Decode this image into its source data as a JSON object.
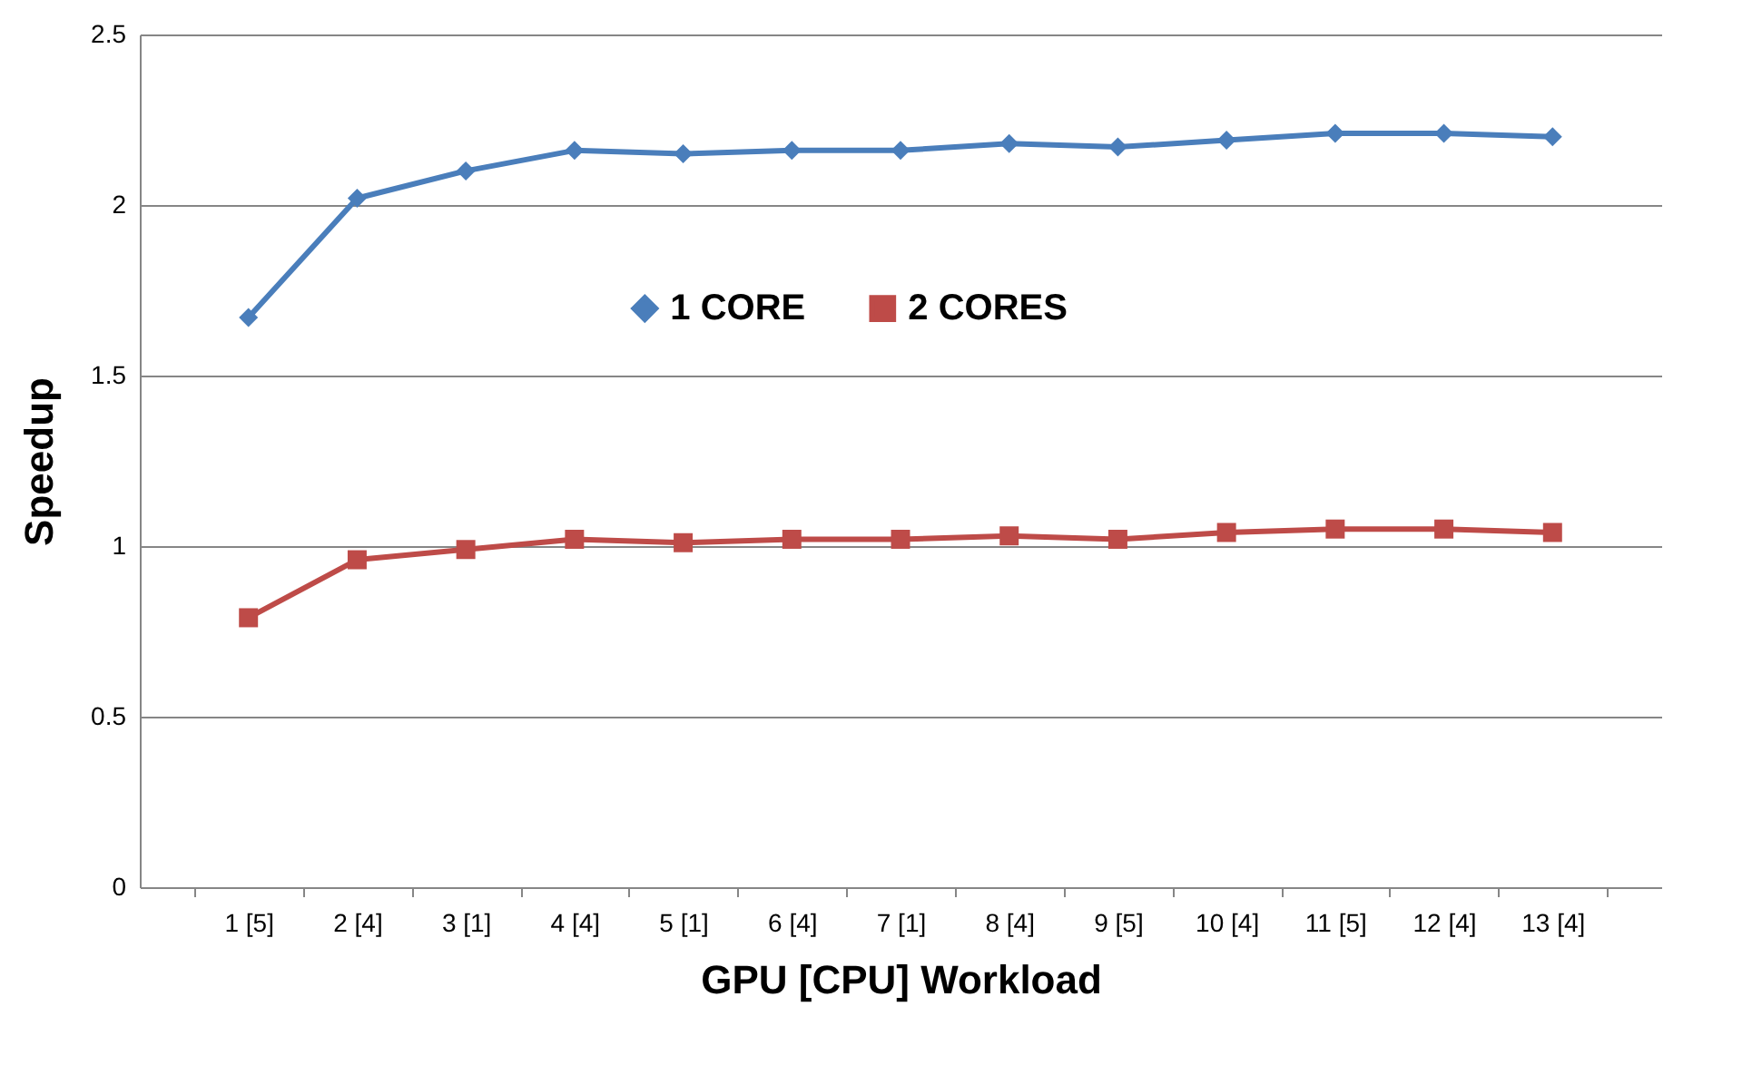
{
  "chart_data": {
    "type": "line",
    "xlabel": "GPU [CPU] Workload",
    "ylabel": "Speedup",
    "categories": [
      "1 [5]",
      "2 [4]",
      "3 [1]",
      "4 [4]",
      "5 [1]",
      "6 [4]",
      "7 [1]",
      "8 [4]",
      "9 [5]",
      "10 [4]",
      "11 [5]",
      "12 [4]",
      "13 [4]"
    ],
    "series": [
      {
        "name": "1 CORE",
        "color": "#4a7ebb",
        "marker": "diamond",
        "values": [
          1.67,
          2.02,
          2.1,
          2.16,
          2.15,
          2.16,
          2.16,
          2.18,
          2.17,
          2.19,
          2.21,
          2.21,
          2.2
        ]
      },
      {
        "name": "2 CORES",
        "color": "#be4b48",
        "marker": "square",
        "values": [
          0.79,
          0.96,
          0.99,
          1.02,
          1.01,
          1.02,
          1.02,
          1.03,
          1.02,
          1.04,
          1.05,
          1.05,
          1.04
        ]
      }
    ],
    "ylim": [
      0,
      2.5
    ],
    "yticks": [
      0,
      0.5,
      1,
      1.5,
      2,
      2.5
    ],
    "grid": "y",
    "legend": "top"
  }
}
